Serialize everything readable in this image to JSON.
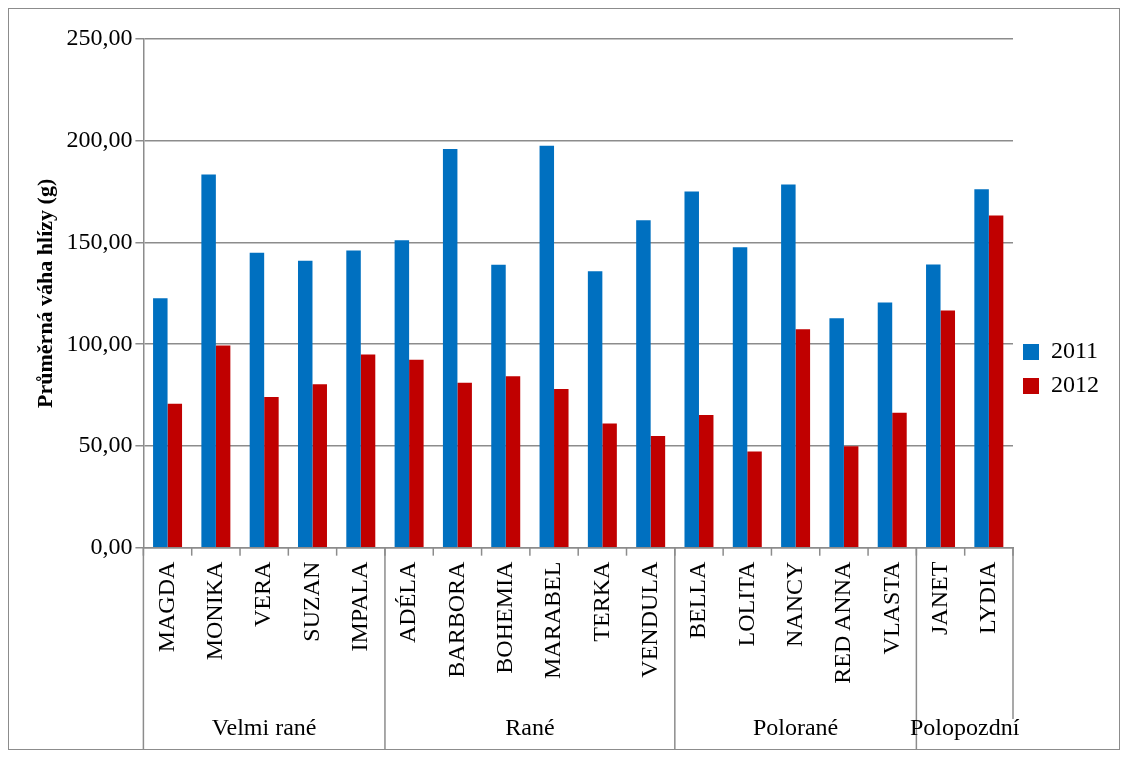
{
  "chart_data": {
    "type": "bar",
    "ylabel": "Průměrná váha hlízy (g)",
    "categories": [
      "MAGDA",
      "MONIKA",
      "VERA",
      "SUZAN",
      "IMPALA",
      "ADÉLA",
      "BARBORA",
      "BOHEMIA",
      "MARABEL",
      "TERKA",
      "VENDULA",
      "BELLA",
      "LOLITA",
      "NANCY",
      "RED ANNA",
      "VLASTA",
      "JANET",
      "LYDIA"
    ],
    "series": [
      {
        "name": "2011",
        "color": "#0070c0",
        "values": [
          122.6,
          183.4,
          144.9,
          141,
          146.1,
          151.1,
          195.9,
          139,
          197.5,
          135.8,
          160.9,
          175.1,
          147.7,
          178.5,
          112.7,
          120.5,
          139.2,
          176.1
        ]
      },
      {
        "name": "2012",
        "color": "#c00000",
        "values": [
          70.7,
          99.4,
          74.1,
          80.3,
          94.9,
          92.3,
          81.1,
          84.3,
          78,
          61,
          54.9,
          65.2,
          47.3,
          107.4,
          49.8,
          66.3,
          116.6,
          163.2
        ]
      }
    ],
    "ylim": [
      0,
      250
    ],
    "yticks": [
      {
        "value": 0,
        "label": "0,00"
      },
      {
        "value": 50,
        "label": "50,00"
      },
      {
        "value": 100,
        "label": "100,00"
      },
      {
        "value": 150,
        "label": "150,00"
      },
      {
        "value": 200,
        "label": "200,00"
      },
      {
        "value": 250,
        "label": "250,00"
      }
    ],
    "grid": "y",
    "legend": "right",
    "annotations": [
      "Velmi rané",
      "Rané",
      "Polorané",
      "Polopozdní"
    ]
  }
}
